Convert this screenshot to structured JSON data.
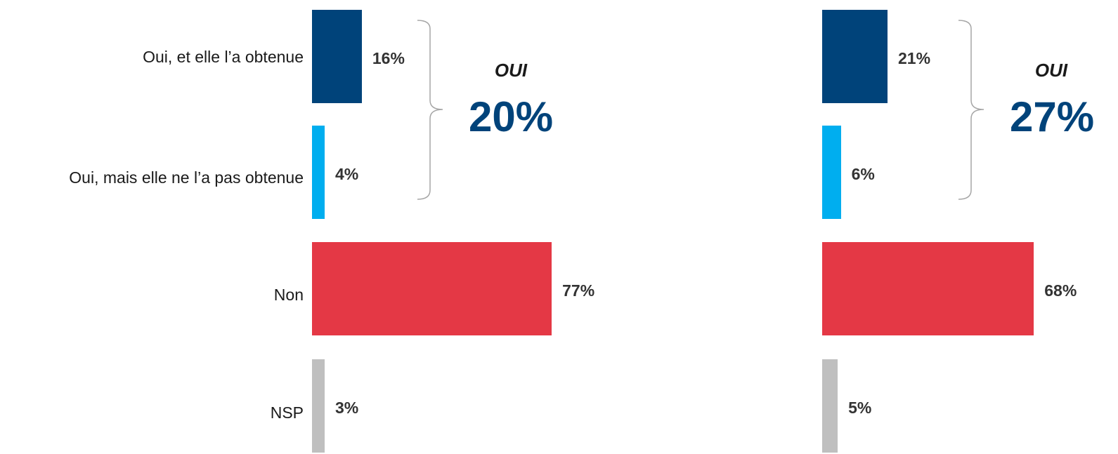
{
  "chart_data": [
    {
      "type": "bar",
      "orientation": "horizontal",
      "categories": [
        "Oui, et elle l’a obtenue",
        "Oui, mais elle ne l’a pas obtenue",
        "Non",
        "NSP"
      ],
      "values": [
        16,
        4,
        77,
        3
      ],
      "value_labels": [
        "16%",
        "4%",
        "77%",
        "3%"
      ],
      "colors": [
        "#00437a",
        "#00aeef",
        "#e43845",
        "#bfbfbf"
      ],
      "xlim": [
        0,
        100
      ],
      "grid": false,
      "group": {
        "label": "OUI",
        "value": 20,
        "value_label": "20%",
        "members": [
          0,
          1
        ]
      }
    },
    {
      "type": "bar",
      "orientation": "horizontal",
      "categories": [
        "Oui, et elle l’a obtenue",
        "Oui, mais elle ne l’a pas obtenue",
        "Non",
        "NSP"
      ],
      "values": [
        21,
        6,
        68,
        5
      ],
      "value_labels": [
        "21%",
        "6%",
        "68%",
        "5%"
      ],
      "colors": [
        "#00437a",
        "#00aeef",
        "#e43845",
        "#bfbfbf"
      ],
      "xlim": [
        0,
        100
      ],
      "grid": false,
      "group": {
        "label": "OUI",
        "value": 27,
        "value_label": "27%",
        "members": [
          0,
          1
        ]
      }
    }
  ]
}
